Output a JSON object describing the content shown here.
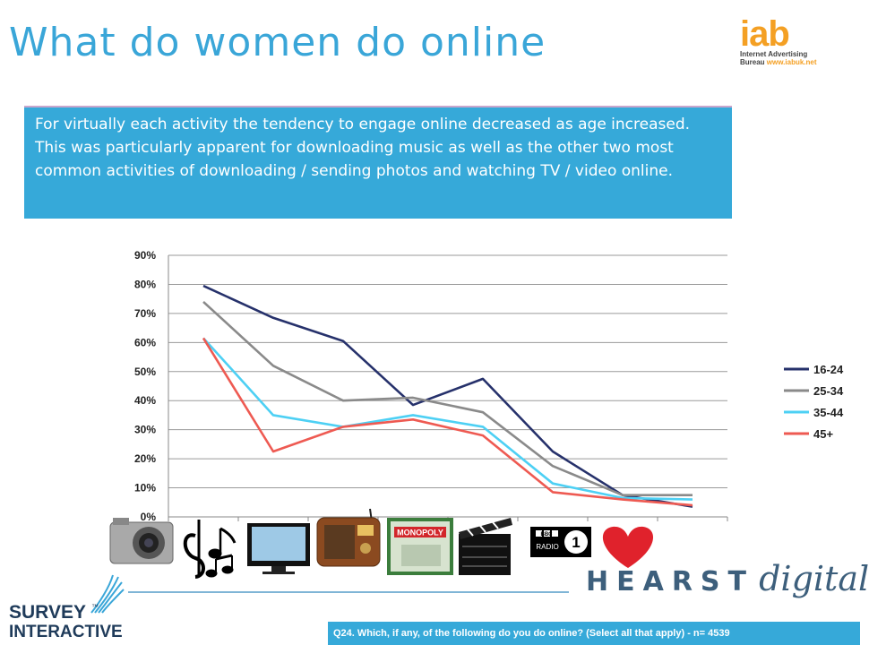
{
  "title": "What do women do online",
  "iab": {
    "word": "iab",
    "line1": "Internet Advertising",
    "line2": "Bureau",
    "url": "www.iabuk.net"
  },
  "summary": "For virtually each activity the tendency to engage online decreased as age increased. This was particularly apparent for downloading music as well as the other two most common activities of downloading / sending photos and watching TV / video online.",
  "chart_data": {
    "type": "line",
    "categories": [
      "camera",
      "music",
      "tv-video",
      "radio",
      "games",
      "film",
      "bbc-radio",
      "dating"
    ],
    "ylim": [
      0,
      90
    ],
    "yticks": [
      "0%",
      "10%",
      "20%",
      "30%",
      "40%",
      "50%",
      "60%",
      "70%",
      "80%",
      "90%"
    ],
    "grid": true,
    "legend": "right",
    "series": [
      {
        "name": "16-24",
        "color": "#26316b",
        "values": [
          79.5,
          68.5,
          60.5,
          38.5,
          47.5,
          22.5,
          7.5,
          3.5
        ]
      },
      {
        "name": "25-34",
        "color": "#8a8a8a",
        "values": [
          74,
          52,
          40,
          41,
          36,
          17.5,
          7.5,
          7.5
        ]
      },
      {
        "name": "35-44",
        "color": "#4dd0f4",
        "values": [
          61.5,
          35,
          31,
          35,
          31,
          11.5,
          6.5,
          6
        ]
      },
      {
        "name": "45+",
        "color": "#ee5a52",
        "values": [
          61.5,
          22.5,
          31,
          33.5,
          28,
          8.5,
          6,
          4
        ]
      }
    ]
  },
  "icons": [
    "camera-icon",
    "music-notes-icon",
    "tv-icon",
    "radio-icon",
    "monopoly-game-icon",
    "clapperboard-icon",
    "bbc-radio-icon",
    "heart-icon"
  ],
  "icon_text": {
    "monopoly": "MONOPOLY",
    "bbc": "BBC",
    "radio": "RADIO",
    "bbc_num": "1"
  },
  "hearst": {
    "word1": "HEARST",
    "word2": "digital"
  },
  "survey": {
    "line1": "SURVEY",
    "line2": "INTERACTIVE",
    "tm": "™"
  },
  "footer": "Q24. Which, if any, of the following do you do online? (Select all that apply) - n= 4539"
}
